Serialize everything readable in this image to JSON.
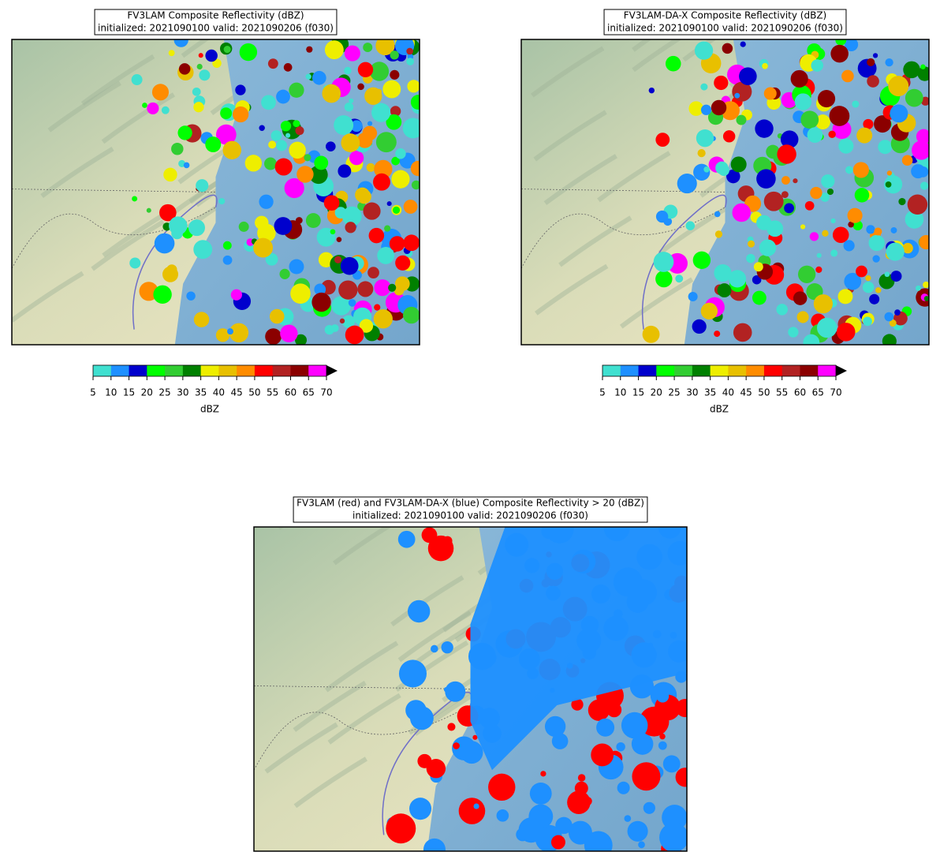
{
  "panels": [
    {
      "title": "FV3LAM Composite Reflectivity (dBZ)",
      "subtitle": "initialized: 2021090100 valid: 2021090206 (f030)",
      "colorbar": {
        "label": "dBZ",
        "ticks": [
          5,
          10,
          15,
          20,
          25,
          30,
          35,
          40,
          45,
          50,
          55,
          60,
          65,
          70
        ],
        "colors": [
          "#40e0d0",
          "#1e90ff",
          "#0000cd",
          "#00ff00",
          "#32cd32",
          "#008000",
          "#eeee00",
          "#e8c000",
          "#ff8c00",
          "#ff0000",
          "#b22222",
          "#8b0000",
          "#ff00ff"
        ],
        "extend_color": "#000000"
      }
    },
    {
      "title": "FV3LAM-DA-X Composite Reflectivity (dBZ)",
      "subtitle": "initialized: 2021090100 valid: 2021090206 (f030)",
      "colorbar": {
        "label": "dBZ",
        "ticks": [
          5,
          10,
          15,
          20,
          25,
          30,
          35,
          40,
          45,
          50,
          55,
          60,
          65,
          70
        ],
        "colors": [
          "#40e0d0",
          "#1e90ff",
          "#0000cd",
          "#00ff00",
          "#32cd32",
          "#008000",
          "#eeee00",
          "#e8c000",
          "#ff8c00",
          "#ff0000",
          "#b22222",
          "#8b0000",
          "#ff00ff"
        ],
        "extend_color": "#000000"
      }
    },
    {
      "title": "FV3LAM (red) and FV3LAM-DA-X (blue) Composite Reflectivity > 20 (dBZ)",
      "subtitle": "initialized: 2021090100 valid: 2021090206 (f030)",
      "overlay_colors": [
        "#ff0000",
        "#1e90ff"
      ]
    }
  ]
}
